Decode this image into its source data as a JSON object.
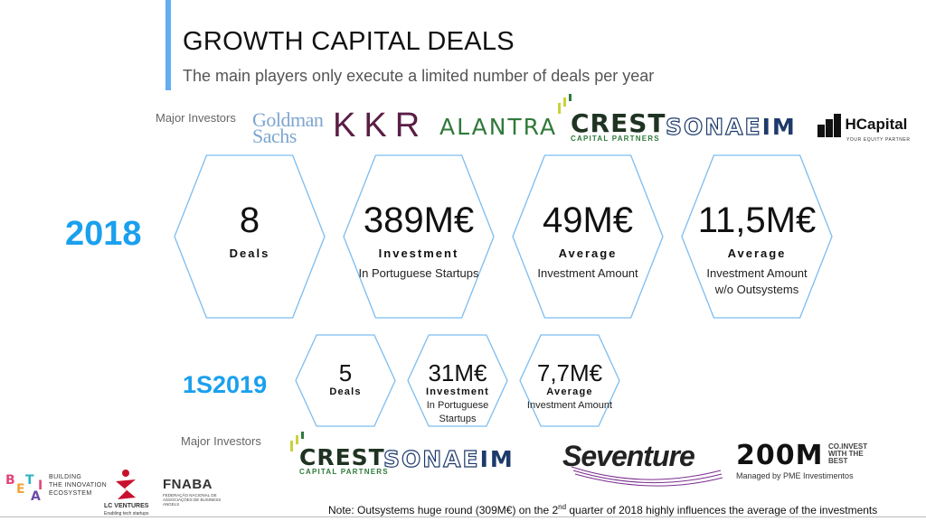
{
  "header": {
    "title": "GROWTH CAPITAL DEALS",
    "subtitle": "The main players only execute a limited number of deals per year"
  },
  "investors_2018": {
    "label": "Major Investors",
    "logos": [
      "Goldman Sachs",
      "KKR",
      "ALANTRA",
      "CREST",
      "CAPITAL PARTNERS",
      "SONAE",
      "IM",
      "HCapital",
      "YOUR EQUITY PARTNER"
    ]
  },
  "year_2018": {
    "label": "2018",
    "stats": [
      {
        "value": "8",
        "label": "Deals",
        "desc1": "",
        "desc2": ""
      },
      {
        "value": "389M€",
        "label": "Investment",
        "desc1": "In Portuguese Startups",
        "desc2": ""
      },
      {
        "value": "49M€",
        "label": "Average",
        "desc1": "Investment Amount",
        "desc2": ""
      },
      {
        "value": "11,5M€",
        "label": "Average",
        "desc1": "Investment Amount",
        "desc2": "w/o Outsystems"
      }
    ]
  },
  "year_2019": {
    "label": "1S2019",
    "stats": [
      {
        "value": "5",
        "label": "Deals",
        "desc1": "",
        "desc2": ""
      },
      {
        "value": "31M€",
        "label": "Investment",
        "desc1": "In Portuguese",
        "desc2": "Startups"
      },
      {
        "value": "7,7M€",
        "label": "Average",
        "desc1": "Investment Amount",
        "desc2": ""
      }
    ]
  },
  "investors_2019": {
    "label": "Major Investors",
    "logos": [
      "CREST",
      "CAPITAL PARTNERS",
      "SONAE",
      "IM",
      "Seventure",
      "200M",
      "CO.INVEST",
      "WITH THE",
      "BEST",
      "Managed by PME Investimentos"
    ]
  },
  "partners": {
    "betai_lines": [
      "BUILDING",
      "THE INNOVATION",
      "ECOSYSTEM"
    ],
    "betai_letters": [
      "B",
      "E",
      "T",
      "A",
      "I"
    ],
    "lc_name": "LC VENTURES",
    "lc_tagline": "Enabling tech startups",
    "fnaba_name": "FNABA",
    "fnaba_desc": "FEDERAÇÃO NACIONAL DE ASSOCIAÇÕES DE BUSINESS ANGELS"
  },
  "note": {
    "before": "Note: Outsystems huge round (309M€) on the 2",
    "sup": "nd",
    "after": " quarter of 2018 highly influences the average of the investments"
  },
  "colors": {
    "accent": "#1aa0ee",
    "accent_bar": "#62aef2",
    "hex_stroke": "#7cbdf0",
    "kkr": "#5a1e45",
    "alantra": "#2f7a3a",
    "sonae": "#1d3a6b",
    "goldman": "#7ea6cf"
  }
}
